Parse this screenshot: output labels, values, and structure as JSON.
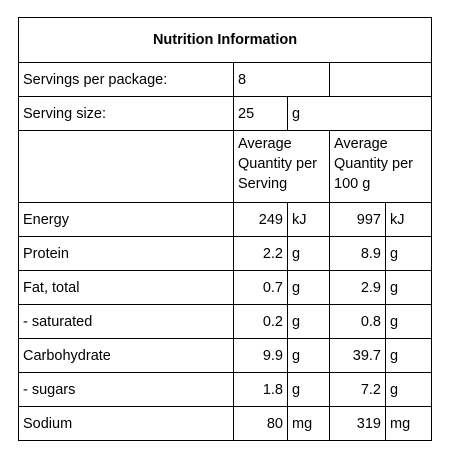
{
  "title": "Nutrition Information",
  "servings_per_package": {
    "label": "Servings per package:",
    "value": "8"
  },
  "serving_size": {
    "label": "Serving size:",
    "value": "25",
    "unit": "g"
  },
  "headers": {
    "per_serving": "Average Quantity per Serving",
    "per_100g": "Average Quantity per 100 g"
  },
  "nutrients": [
    {
      "name": "Energy",
      "per_serving": "249",
      "per_serving_unit": "kJ",
      "per_100g": "997",
      "per_100g_unit": "kJ"
    },
    {
      "name": "Protein",
      "per_serving": "2.2",
      "per_serving_unit": "g",
      "per_100g": "8.9",
      "per_100g_unit": "g"
    },
    {
      "name": "Fat, total",
      "per_serving": "0.7",
      "per_serving_unit": "g",
      "per_100g": "2.9",
      "per_100g_unit": "g"
    },
    {
      "name": "- saturated",
      "per_serving": "0.2",
      "per_serving_unit": "g",
      "per_100g": "0.8",
      "per_100g_unit": "g"
    },
    {
      "name": "Carbohydrate",
      "per_serving": "9.9",
      "per_serving_unit": "g",
      "per_100g": "39.7",
      "per_100g_unit": "g"
    },
    {
      "name": "- sugars",
      "per_serving": "1.8",
      "per_serving_unit": "g",
      "per_100g": "7.2",
      "per_100g_unit": "g"
    },
    {
      "name": "Sodium",
      "per_serving": "80",
      "per_serving_unit": "mg",
      "per_100g": "319",
      "per_100g_unit": "mg"
    }
  ]
}
